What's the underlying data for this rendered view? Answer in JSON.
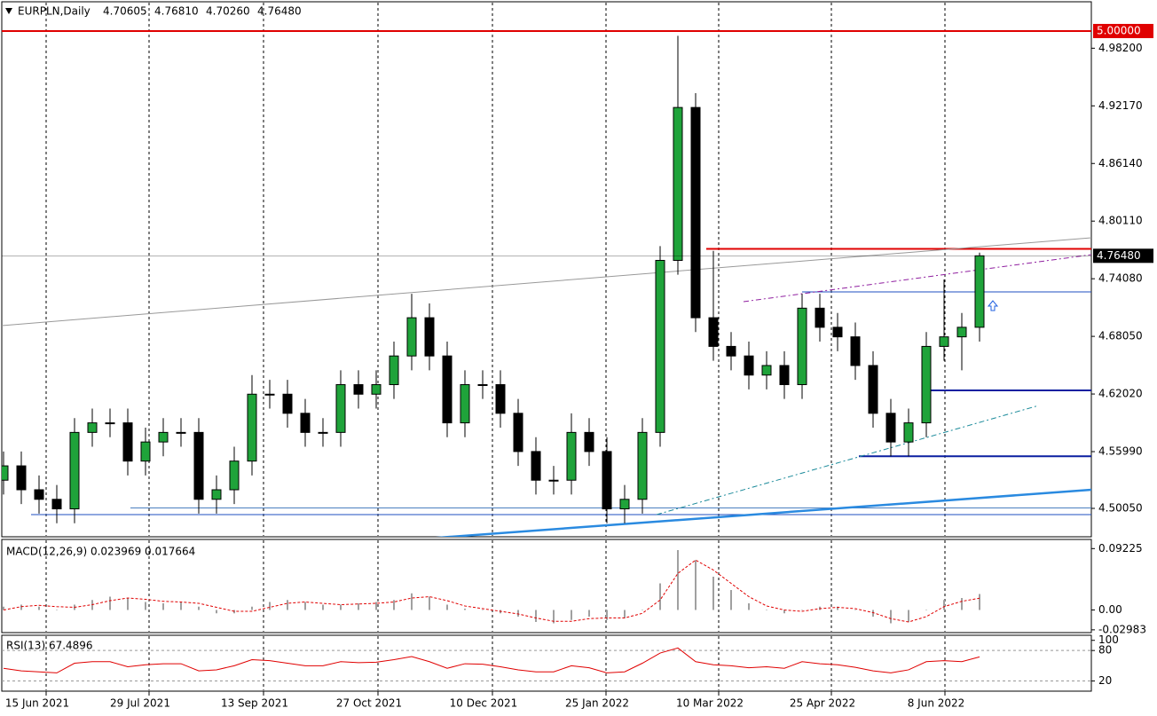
{
  "chart_data": [
    {
      "type": "candlestick",
      "header": {
        "symbol": "EURPLN,Daily",
        "ohlc": [
          "4.70605",
          "4.76810",
          "4.70260",
          "4.76480"
        ]
      },
      "x": [
        0,
        5,
        10,
        15,
        20,
        25,
        30,
        35,
        40,
        45,
        50,
        55,
        60,
        65,
        70,
        75,
        80,
        85,
        90,
        95,
        100,
        105,
        110,
        115,
        120,
        125,
        130,
        135,
        140,
        145,
        150,
        155,
        160,
        165,
        170,
        175,
        180,
        185,
        190,
        195,
        200,
        205,
        210,
        215,
        220,
        225,
        230,
        235,
        240,
        245,
        250,
        255,
        260,
        265,
        270,
        275
      ],
      "open": [
        4.53,
        4.545,
        4.52,
        4.51,
        4.5,
        4.58,
        4.59,
        4.59,
        4.55,
        4.57,
        4.58,
        4.58,
        4.51,
        4.52,
        4.55,
        4.62,
        4.62,
        4.6,
        4.58,
        4.58,
        4.63,
        4.62,
        4.63,
        4.66,
        4.7,
        4.66,
        4.59,
        4.63,
        4.63,
        4.6,
        4.56,
        4.53,
        4.53,
        4.58,
        4.56,
        4.5,
        4.51,
        4.58,
        4.76,
        4.92,
        4.7,
        4.67,
        4.66,
        4.64,
        4.65,
        4.63,
        4.71,
        4.69,
        4.68,
        4.65,
        4.6,
        4.57,
        4.59,
        4.67,
        4.68,
        4.69
      ],
      "high": [
        4.56,
        4.56,
        4.535,
        4.525,
        4.595,
        4.605,
        4.605,
        4.605,
        4.585,
        4.595,
        4.595,
        4.595,
        4.535,
        4.565,
        4.64,
        4.635,
        4.635,
        4.615,
        4.595,
        4.645,
        4.645,
        4.645,
        4.675,
        4.725,
        4.715,
        4.675,
        4.645,
        4.645,
        4.645,
        4.615,
        4.575,
        4.545,
        4.6,
        4.595,
        4.575,
        4.525,
        4.595,
        4.775,
        4.995,
        4.935,
        4.77,
        4.685,
        4.675,
        4.665,
        4.665,
        4.725,
        4.725,
        4.705,
        4.695,
        4.665,
        4.615,
        4.605,
        4.685,
        4.74,
        4.705,
        4.7681
      ],
      "low": [
        4.515,
        4.505,
        4.495,
        4.485,
        4.485,
        4.565,
        4.575,
        4.535,
        4.535,
        4.555,
        4.565,
        4.495,
        4.495,
        4.505,
        4.535,
        4.605,
        4.585,
        4.565,
        4.565,
        4.565,
        4.605,
        4.605,
        4.615,
        4.645,
        4.645,
        4.575,
        4.575,
        4.615,
        4.585,
        4.545,
        4.515,
        4.515,
        4.515,
        4.545,
        4.485,
        4.485,
        4.495,
        4.565,
        4.745,
        4.685,
        4.655,
        4.645,
        4.625,
        4.625,
        4.615,
        4.615,
        4.675,
        4.665,
        4.635,
        4.585,
        4.555,
        4.555,
        4.575,
        4.655,
        4.645,
        4.675
      ],
      "close": [
        4.545,
        4.52,
        4.51,
        4.5,
        4.58,
        4.59,
        4.59,
        4.55,
        4.57,
        4.58,
        4.58,
        4.51,
        4.52,
        4.55,
        4.62,
        4.62,
        4.6,
        4.58,
        4.58,
        4.63,
        4.62,
        4.63,
        4.66,
        4.7,
        4.66,
        4.59,
        4.63,
        4.63,
        4.6,
        4.56,
        4.53,
        4.53,
        4.58,
        4.56,
        4.5,
        4.51,
        4.58,
        4.76,
        4.92,
        4.7,
        4.67,
        4.66,
        4.64,
        4.65,
        4.63,
        4.71,
        4.69,
        4.68,
        4.65,
        4.6,
        4.57,
        4.59,
        4.67,
        4.68,
        4.69,
        4.7648
      ],
      "up_color": "#1fa33a",
      "down_color": "#000000",
      "xlim": [
        -0.5,
        306.5
      ],
      "ylim": [
        4.4708,
        5.0306
      ],
      "xticks": [
        {
          "value": 12,
          "label": "15 Jun 2021"
        },
        {
          "value": 41,
          "label": "29 Jul 2021"
        },
        {
          "value": 73.25,
          "label": "13 Sep 2021"
        },
        {
          "value": 105.5,
          "label": "27 Oct 2021"
        },
        {
          "value": 137.75,
          "label": "10 Dec 2021"
        },
        {
          "value": 169.75,
          "label": "25 Jan 2022"
        },
        {
          "value": 201.5,
          "label": "10 Mar 2022"
        },
        {
          "value": 233.25,
          "label": "25 Apr 2022"
        },
        {
          "value": 265.25,
          "label": "8 Jun 2022"
        }
      ],
      "yticks": [
        {
          "value": 4.982,
          "label": "4.98200"
        },
        {
          "value": 4.9217,
          "label": "4.92170"
        },
        {
          "value": 4.8614,
          "label": "4.86140"
        },
        {
          "value": 4.8011,
          "label": "4.80110"
        },
        {
          "value": 4.7408,
          "label": "4.74080"
        },
        {
          "value": 4.6805,
          "label": "4.68050"
        },
        {
          "value": 4.6202,
          "label": "4.62020"
        },
        {
          "value": 4.5599,
          "label": "4.55990"
        },
        {
          "value": 4.5005,
          "label": "4.50050"
        }
      ],
      "markers": [
        {
          "value": 5.0,
          "label": "5.00000",
          "color": "#e00000"
        },
        {
          "value": 4.7648,
          "label": "4.76480",
          "color": "#000000"
        }
      ],
      "lines": [
        {
          "x": [
            -0.5,
            306.5
          ],
          "y": [
            5.0,
            5.0
          ],
          "color": "#e00000",
          "width": 2
        },
        {
          "x": [
            198,
            306.5
          ],
          "y": [
            4.772,
            4.772
          ],
          "color": "#e00000",
          "width": 2
        },
        {
          "x": [
            225,
            306.5
          ],
          "y": [
            4.727,
            4.727
          ],
          "color": "#1f4fc0",
          "width": 1
        },
        {
          "x": [
            260.75,
            306.5
          ],
          "y": [
            4.624,
            4.624
          ],
          "color": "#0a1fa0",
          "width": 2
        },
        {
          "x": [
            241,
            306.5
          ],
          "y": [
            4.555,
            4.555
          ],
          "color": "#0a1fa0",
          "width": 2
        },
        {
          "x": [
            7.75,
            306.5
          ],
          "y": [
            4.494,
            4.494
          ],
          "color": "#1f4fc0",
          "width": 1
        },
        {
          "x": [
            35.75,
            306.5
          ],
          "y": [
            4.501,
            4.501
          ],
          "color": "#4a7fc0",
          "width": 1
        },
        {
          "x": [
            -0.5,
            306.5
          ],
          "y": [
            4.6918,
            4.7837
          ],
          "color": "#999999",
          "width": 1
        },
        {
          "x": [
            119,
            306.5
          ],
          "y": [
            4.4689,
            4.52
          ],
          "color": "#2a8ae0",
          "width": 2.5
        },
        {
          "x": [
            208.5,
            306.5
          ],
          "y": [
            4.7168,
            4.766
          ],
          "color": "#9020a0",
          "width": 1,
          "dash": true
        },
        {
          "x": [
            184,
            291.5
          ],
          "y": [
            4.494,
            4.608
          ],
          "color": "#1a8a9a",
          "width": 1,
          "dash": true
        }
      ]
    },
    {
      "type": "macd",
      "title": "MACD(12,26,9) 0.023969 0.017664",
      "series": [
        {
          "name": "MACD",
          "color": "#a0a0a0",
          "values": [
            0.005,
            0.008,
            0.005,
            0.0,
            0.008,
            0.015,
            0.02,
            0.018,
            0.012,
            0.01,
            0.012,
            0.005,
            -0.005,
            -0.005,
            0.005,
            0.012,
            0.015,
            0.012,
            0.008,
            0.008,
            0.01,
            0.012,
            0.015,
            0.025,
            0.02,
            0.008,
            0.002,
            0.0,
            -0.005,
            -0.01,
            -0.018,
            -0.02,
            -0.015,
            -0.01,
            -0.015,
            -0.012,
            0.0,
            0.04,
            0.09,
            0.075,
            0.05,
            0.03,
            0.01,
            0.0,
            -0.005,
            0.0,
            0.005,
            0.005,
            0.0,
            -0.01,
            -0.02,
            -0.018,
            0.0,
            0.015,
            0.018,
            0.024
          ]
        },
        {
          "name": "Signal",
          "color": "#e00000",
          "values": [
            0.0,
            0.005,
            0.007,
            0.005,
            0.004,
            0.008,
            0.014,
            0.018,
            0.016,
            0.013,
            0.012,
            0.01,
            0.004,
            -0.002,
            -0.002,
            0.004,
            0.01,
            0.012,
            0.01,
            0.008,
            0.009,
            0.01,
            0.012,
            0.018,
            0.02,
            0.014,
            0.006,
            0.002,
            -0.002,
            -0.006,
            -0.012,
            -0.017,
            -0.017,
            -0.013,
            -0.012,
            -0.012,
            -0.005,
            0.015,
            0.055,
            0.075,
            0.06,
            0.04,
            0.02,
            0.006,
            0.0,
            -0.002,
            0.002,
            0.004,
            0.002,
            -0.004,
            -0.013,
            -0.018,
            -0.01,
            0.005,
            0.013,
            0.0177
          ]
        }
      ],
      "ylim": [
        -0.034,
        0.106
      ],
      "yticks": [
        0.09225,
        {
          "value": 0,
          "label": "0.00"
        },
        -0.02983
      ]
    },
    {
      "type": "rsi",
      "title": "RSI(13) 67.4896",
      "series": [
        {
          "name": "RSI",
          "color": "#e00000",
          "values": [
            45,
            40,
            38,
            36,
            55,
            58,
            58,
            48,
            52,
            54,
            54,
            40,
            42,
            50,
            62,
            60,
            55,
            50,
            50,
            58,
            56,
            57,
            62,
            68,
            58,
            45,
            54,
            53,
            48,
            42,
            38,
            38,
            50,
            46,
            36,
            38,
            55,
            75,
            85,
            58,
            52,
            50,
            46,
            48,
            45,
            58,
            54,
            52,
            47,
            40,
            36,
            42,
            58,
            60,
            58,
            67.49
          ]
        }
      ],
      "ylim": [
        0,
        110
      ],
      "yticks": [
        100,
        80,
        20
      ],
      "grid": [
        80,
        20
      ]
    }
  ]
}
